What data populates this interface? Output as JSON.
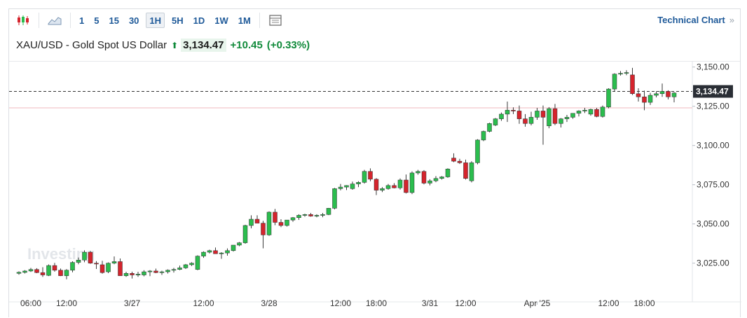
{
  "toolbar": {
    "chart_type_icons": [
      "candlestick-icon",
      "area-chart-icon"
    ],
    "intervals": [
      "1",
      "5",
      "15",
      "30",
      "1H",
      "5H",
      "1D",
      "1W",
      "1M"
    ],
    "active_interval": "1H",
    "settings_icon": "table-icon",
    "technical_chart_label": "Technical Chart",
    "technical_chart_chevron": "»"
  },
  "quote": {
    "name": "XAU/USD - Gold Spot US Dollar",
    "price": "3,134.47",
    "change": "+10.45",
    "change_pct": "(+0.33%)",
    "direction": "up"
  },
  "colors": {
    "up": "#2bbd4e",
    "down": "#d5242d",
    "link": "#1f5a99"
  },
  "chart_data": {
    "type": "candlestick",
    "watermark": "Investing",
    "current_price_label": "3,134.47",
    "current_price": 3134.47,
    "reference_line": 3124.0,
    "ylim": [
      3003,
      3153
    ],
    "yticks": [
      3025,
      3050,
      3075,
      3100,
      3125,
      3150
    ],
    "ytick_labels": [
      "3,025.00",
      "3,050.00",
      "3,075.00",
      "3,100.00",
      "3,125.00",
      "3,150.00"
    ],
    "xlabels": [
      {
        "label": "06:00",
        "i": 2
      },
      {
        "label": "12:00",
        "i": 8
      },
      {
        "label": "3/27",
        "i": 19
      },
      {
        "label": "12:00",
        "i": 31
      },
      {
        "label": "3/28",
        "i": 42
      },
      {
        "label": "12:00",
        "i": 54
      },
      {
        "label": "18:00",
        "i": 60
      },
      {
        "label": "3/31",
        "i": 69
      },
      {
        "label": "12:00",
        "i": 75
      },
      {
        "label": "Apr '25",
        "i": 87
      },
      {
        "label": "12:00",
        "i": 99
      },
      {
        "label": "18:00",
        "i": 105
      }
    ],
    "candles": [
      [
        3018.5,
        3019.8,
        3017.6,
        3019.2
      ],
      [
        3019.1,
        3020.6,
        3018.4,
        3020.0
      ],
      [
        3020.0,
        3022.0,
        3019.4,
        3021.0
      ],
      [
        3021.0,
        3021.8,
        3018.6,
        3019.0
      ],
      [
        3019.0,
        3022.4,
        3016.2,
        3017.5
      ],
      [
        3017.2,
        3024.2,
        3016.8,
        3023.5
      ],
      [
        3023.5,
        3025.2,
        3019.6,
        3020.5
      ],
      [
        3020.5,
        3021.6,
        3016.8,
        3017.0
      ],
      [
        3017.0,
        3021.2,
        3014.7,
        3020.5
      ],
      [
        3020.5,
        3026.2,
        3019.2,
        3025.5
      ],
      [
        3025.5,
        3028.6,
        3024.3,
        3027.0
      ],
      [
        3027.0,
        3033.2,
        3025.6,
        3032.0
      ],
      [
        3032.0,
        3032.8,
        3024.6,
        3025.0
      ],
      [
        3025.0,
        3026.3,
        3021.3,
        3024.5
      ],
      [
        3024.0,
        3026.5,
        3018.3,
        3019.0
      ],
      [
        3019.5,
        3025.5,
        3018.6,
        3025.0
      ],
      [
        3025.0,
        3029.3,
        3024.3,
        3026.0
      ],
      [
        3026.0,
        3028.0,
        3018.5,
        3017.0
      ],
      [
        3017.0,
        3019.5,
        3016.3,
        3018.5
      ],
      [
        3018.5,
        3019.6,
        3015.2,
        3017.5
      ],
      [
        3017.5,
        3019.5,
        3016.3,
        3018.0
      ],
      [
        3017.5,
        3020.5,
        3016.6,
        3019.5
      ],
      [
        3019.5,
        3020.6,
        3016.7,
        3020.0
      ],
      [
        3020.0,
        3021.5,
        3018.6,
        3019.0
      ],
      [
        3019.0,
        3020.2,
        3017.5,
        3019.5
      ],
      [
        3019.5,
        3021.0,
        3018.4,
        3020.5
      ],
      [
        3020.5,
        3022.0,
        3019.0,
        3021.0
      ],
      [
        3021.0,
        3023.5,
        3020.5,
        3022.0
      ],
      [
        3022.0,
        3024.5,
        3021.3,
        3024.0
      ],
      [
        3024.0,
        3025.6,
        3023.2,
        3025.0
      ],
      [
        3021.0,
        3030.0,
        3020.5,
        3029.5
      ],
      [
        3029.5,
        3032.5,
        3028.4,
        3032.0
      ],
      [
        3032.0,
        3033.6,
        3031.2,
        3033.0
      ],
      [
        3033.0,
        3035.0,
        3031.6,
        3031.0
      ],
      [
        3031.0,
        3032.0,
        3027.8,
        3031.5
      ],
      [
        3031.5,
        3034.4,
        3029.8,
        3033.0
      ],
      [
        3033.0,
        3036.5,
        3032.4,
        3036.5
      ],
      [
        3036.5,
        3038.5,
        3035.8,
        3038.0
      ],
      [
        3038.0,
        3049.5,
        3037.4,
        3049.0
      ],
      [
        3049.0,
        3055.5,
        3047.2,
        3053.0
      ],
      [
        3053.0,
        3055.5,
        3051.6,
        3050.5
      ],
      [
        3050.5,
        3052.0,
        3034.5,
        3043.0
      ],
      [
        3043.0,
        3058.0,
        3042.4,
        3057.5
      ],
      [
        3057.5,
        3059.6,
        3049.2,
        3051.0
      ],
      [
        3051.0,
        3053.0,
        3048.0,
        3049.0
      ],
      [
        3049.0,
        3052.5,
        3048.3,
        3052.5
      ],
      [
        3052.5,
        3054.4,
        3051.4,
        3054.0
      ],
      [
        3054.0,
        3056.2,
        3052.6,
        3055.5
      ],
      [
        3055.5,
        3056.5,
        3054.6,
        3056.0
      ],
      [
        3056.0,
        3057.0,
        3054.6,
        3055.0
      ],
      [
        3055.0,
        3056.2,
        3054.2,
        3055.5
      ],
      [
        3055.5,
        3057.0,
        3054.3,
        3056.0
      ],
      [
        3056.0,
        3060.2,
        3055.6,
        3060.0
      ],
      [
        3060.0,
        3073.0,
        3059.3,
        3072.5
      ],
      [
        3072.5,
        3075.5,
        3071.4,
        3073.5
      ],
      [
        3073.5,
        3074.7,
        3071.6,
        3074.5
      ],
      [
        3072.5,
        3077.0,
        3071.8,
        3075.5
      ],
      [
        3075.5,
        3077.2,
        3073.5,
        3076.5
      ],
      [
        3076.5,
        3084.5,
        3075.7,
        3083.5
      ],
      [
        3083.5,
        3085.4,
        3077.2,
        3078.5
      ],
      [
        3078.5,
        3079.2,
        3068.4,
        3071.5
      ],
      [
        3071.5,
        3073.5,
        3070.3,
        3072.5
      ],
      [
        3072.5,
        3075.5,
        3071.8,
        3074.5
      ],
      [
        3074.5,
        3076.0,
        3072.7,
        3073.0
      ],
      [
        3073.0,
        3079.0,
        3071.9,
        3078.0
      ],
      [
        3078.0,
        3081.5,
        3069.4,
        3070.0
      ],
      [
        3070.0,
        3083.5,
        3069.0,
        3082.5
      ],
      [
        3082.5,
        3084.5,
        3081.4,
        3083.5
      ],
      [
        3083.5,
        3084.3,
        3075.2,
        3076.0
      ],
      [
        3076.0,
        3078.5,
        3074.6,
        3077.5
      ],
      [
        3077.5,
        3080.5,
        3076.6,
        3079.0
      ],
      [
        3079.0,
        3080.5,
        3078.3,
        3080.0
      ],
      [
        3080.0,
        3085.5,
        3079.4,
        3085.0
      ],
      [
        3092.0,
        3095.0,
        3089.4,
        3090.0
      ],
      [
        3090.0,
        3091.5,
        3088.2,
        3089.0
      ],
      [
        3089.0,
        3091.0,
        3078.3,
        3079.0
      ],
      [
        3077.5,
        3090.0,
        3076.5,
        3089.0
      ],
      [
        3089.0,
        3104.0,
        3088.0,
        3103.5
      ],
      [
        3103.5,
        3109.5,
        3102.8,
        3109.0
      ],
      [
        3109.0,
        3114.5,
        3108.4,
        3114.0
      ],
      [
        3113.0,
        3117.5,
        3112.4,
        3117.0
      ],
      [
        3117.0,
        3121.0,
        3115.7,
        3120.0
      ],
      [
        3120.0,
        3128.0,
        3115.0,
        3122.5
      ],
      [
        3122.5,
        3124.3,
        3120.0,
        3122.0
      ],
      [
        3122.0,
        3125.5,
        3113.8,
        3117.0
      ],
      [
        3117.0,
        3120.0,
        3112.0,
        3114.0
      ],
      [
        3114.0,
        3121.5,
        3112.8,
        3118.0
      ],
      [
        3118.0,
        3124.0,
        3116.4,
        3122.0
      ],
      [
        3122.0,
        3125.5,
        3100.5,
        3118.0
      ],
      [
        3112.5,
        3124.5,
        3111.0,
        3123.5
      ],
      [
        3123.5,
        3126.5,
        3113.0,
        3114.0
      ],
      [
        3114.0,
        3117.5,
        3111.5,
        3117.0
      ],
      [
        3117.0,
        3119.5,
        3115.0,
        3118.0
      ],
      [
        3118.0,
        3120.5,
        3117.0,
        3120.5
      ],
      [
        3120.5,
        3122.5,
        3118.5,
        3122.0
      ],
      [
        3122.0,
        3124.0,
        3120.7,
        3122.5
      ],
      [
        3120.0,
        3123.5,
        3119.0,
        3123.0
      ],
      [
        3123.0,
        3124.0,
        3118.0,
        3118.5
      ],
      [
        3118.5,
        3125.5,
        3117.8,
        3124.5
      ],
      [
        3124.5,
        3136.5,
        3123.7,
        3136.0
      ],
      [
        3136.0,
        3146.0,
        3134.4,
        3145.5
      ],
      [
        3145.5,
        3147.5,
        3144.6,
        3146.0
      ],
      [
        3146.0,
        3148.0,
        3144.8,
        3146.5
      ],
      [
        3145.0,
        3149.5,
        3132.2,
        3133.0
      ],
      [
        3133.0,
        3136.5,
        3128.0,
        3131.0
      ],
      [
        3131.0,
        3135.0,
        3122.5,
        3127.5
      ],
      [
        3127.5,
        3133.5,
        3125.8,
        3132.0
      ],
      [
        3132.0,
        3134.5,
        3130.7,
        3133.0
      ],
      [
        3133.0,
        3139.5,
        3131.0,
        3134.5
      ],
      [
        3134.5,
        3135.2,
        3129.4,
        3131.0
      ],
      [
        3131.0,
        3134.0,
        3127.5,
        3133.5
      ]
    ]
  }
}
